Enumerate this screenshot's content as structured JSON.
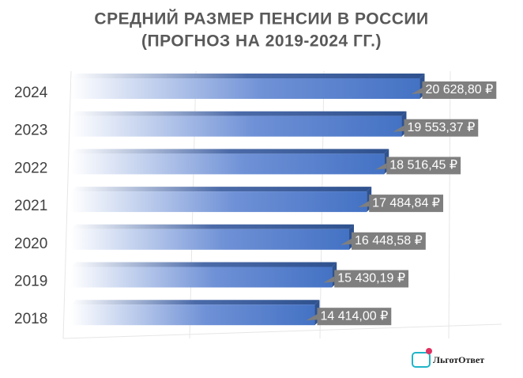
{
  "chart_data": {
    "type": "bar",
    "orientation": "horizontal",
    "title": [
      "СРЕДНИЙ РАЗМЕР ПЕНСИИ В РОССИИ",
      "(ПРОГНОЗ НА 2019-2024 ГГ.)"
    ],
    "categories": [
      "2024",
      "2023",
      "2022",
      "2021",
      "2020",
      "2019",
      "2018"
    ],
    "values": [
      20628.8,
      19553.37,
      18516.45,
      17484.84,
      16448.58,
      15430.19,
      14414.0
    ],
    "value_labels": [
      "20 628,80 ₽",
      "19 553,37 ₽",
      "18 516,45 ₽",
      "17 484,84 ₽",
      "16 448,58 ₽",
      "15 430,19 ₽",
      "14 414,00 ₽"
    ],
    "color": "#4472c4",
    "xlim": [
      0,
      25000
    ],
    "watermark": "ЛьготОтвет"
  }
}
